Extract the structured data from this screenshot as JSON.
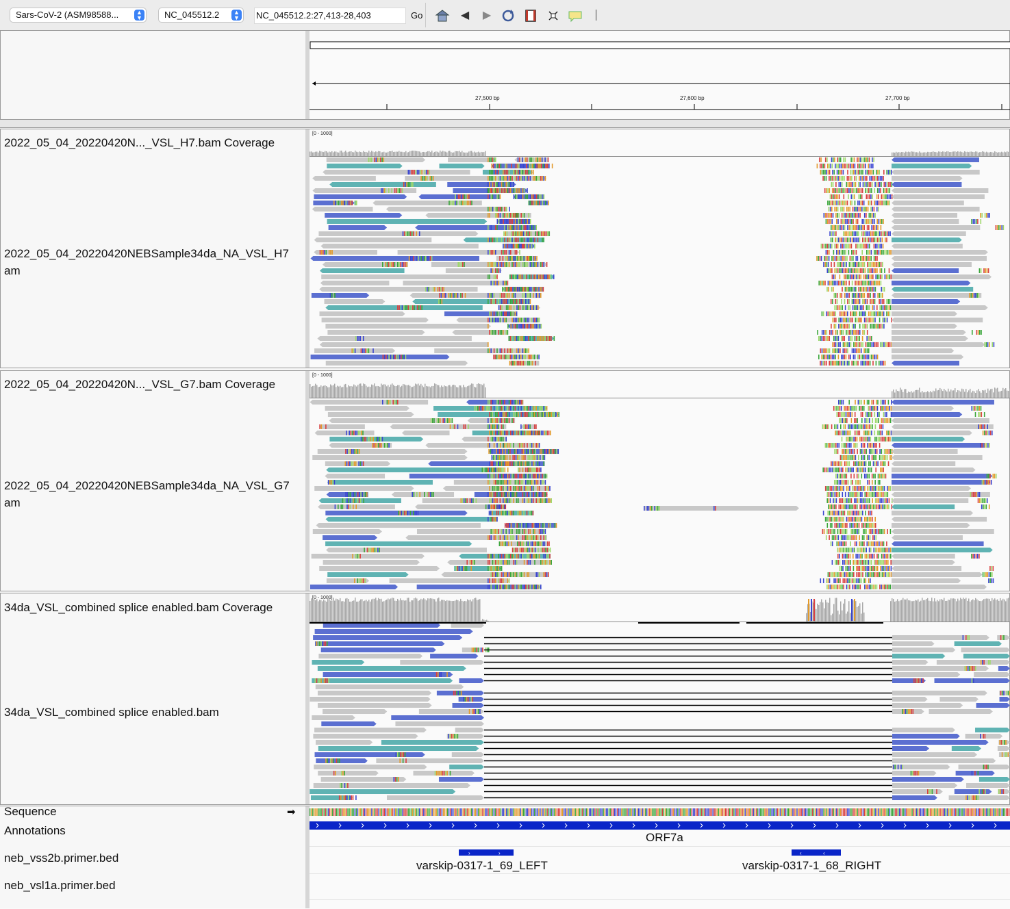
{
  "toolbar": {
    "genome": "Sars-CoV-2 (ASM98588...",
    "chromosome": "NC_045512.2",
    "locus": "NC_045512.2:27,413-28,403",
    "go_label": "Go",
    "icons": [
      "home-icon",
      "back-icon",
      "forward-icon",
      "refresh-icon",
      "roi-icon",
      "resize-icon",
      "popup-text-icon"
    ]
  },
  "ruler": {
    "ticks": [
      "27,500 bp",
      "27,600 bp",
      "27,700 bp"
    ]
  },
  "tracks": {
    "h7_coverage_name": "2022_05_04_20220420N..._VSL_H7.bam Coverage",
    "h7_coverage_range": "[0 - 1000]",
    "h7_alignment_name_line1": "2022_05_04_20220420NEBSample34da_NA_VSL_H7",
    "h7_alignment_name_line2": "am",
    "g7_coverage_name": "2022_05_04_20220420N..._VSL_G7.bam Coverage",
    "g7_coverage_range": "[0 - 1000]",
    "g7_alignment_name_line1": "2022_05_04_20220420NEBSample34da_NA_VSL_G7",
    "g7_alignment_name_line2": "am",
    "combined_coverage_name": "34da_VSL_combined splice enabled.bam Coverage",
    "combined_coverage_range": "[0 - 1000]",
    "combined_alignment_name": "34da_VSL_combined splice enabled.bam",
    "sequence_name": "Sequence",
    "sequence_arrow": "➡",
    "annotations_name": "Annotations",
    "vss2b_name": "neb_vss2b.primer.bed",
    "vsl1a_name": "neb_vsl1a.primer.bed"
  },
  "features": {
    "gene": "ORF7a",
    "primer_left": "varskip-0317-1_69_LEFT",
    "primer_right": "varskip-0317-1_68_RIGHT"
  },
  "colors": {
    "read_gray": "#c8c8c8",
    "read_blue": "#5b6fd1",
    "read_teal": "#5fb3b3",
    "gene_blue": "#0a25c8",
    "mismatch": [
      "#d94040",
      "#3aa63a",
      "#e39a2a",
      "#3a45d0",
      "#9ed86a"
    ]
  }
}
